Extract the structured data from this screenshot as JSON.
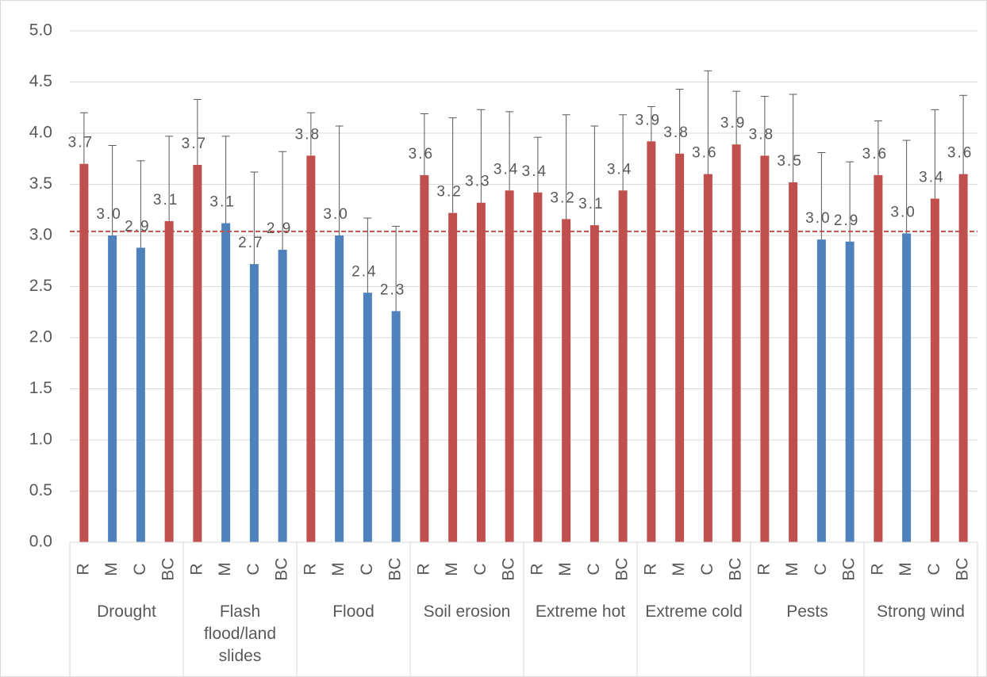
{
  "chart_data": {
    "type": "bar",
    "groups": [
      "Drought",
      "Flash flood/land slides",
      "Flood",
      "Soil erosion",
      "Extreme hot",
      "Extreme cold",
      "Pests",
      "Strong wind"
    ],
    "categories": [
      "R",
      "M",
      "C",
      "BC",
      "R",
      "M",
      "C",
      "BC",
      "R",
      "M",
      "C",
      "BC",
      "R",
      "M",
      "C",
      "BC",
      "R",
      "M",
      "C",
      "BC",
      "R",
      "M",
      "C",
      "BC",
      "R",
      "M",
      "C",
      "BC",
      "R",
      "M",
      "C",
      "BC"
    ],
    "values": [
      3.7,
      3.0,
      2.88,
      3.14,
      3.69,
      3.12,
      2.72,
      2.86,
      3.78,
      3.0,
      2.44,
      2.26,
      3.59,
      3.22,
      3.32,
      3.44,
      3.42,
      3.16,
      3.1,
      3.44,
      3.92,
      3.8,
      3.6,
      3.89,
      3.78,
      3.52,
      2.96,
      2.94,
      3.59,
      3.02,
      3.36,
      3.6
    ],
    "value_labels": [
      "3.7",
      "3.0",
      "2.9",
      "3.1",
      "3.7",
      "3.1",
      "2.7",
      "2.9",
      "3.8",
      "3.0",
      "2.4",
      "2.3",
      "3.6",
      "3.2",
      "3.3",
      "3.4",
      "3.4",
      "3.2",
      "3.1",
      "3.4",
      "3.9",
      "3.8",
      "3.6",
      "3.9",
      "3.8",
      "3.5",
      "3.0",
      "2.9",
      "3.6",
      "3.0",
      "3.4",
      "3.6"
    ],
    "errors": [
      0.5,
      0.88,
      0.85,
      0.83,
      0.64,
      0.85,
      0.9,
      0.96,
      0.42,
      1.07,
      0.73,
      0.83,
      0.6,
      0.93,
      0.91,
      0.77,
      0.54,
      1.02,
      0.97,
      0.74,
      0.34,
      0.63,
      1.01,
      0.52,
      0.58,
      0.86,
      0.85,
      0.78,
      0.53,
      0.91,
      0.87,
      0.77
    ],
    "colors": [
      "#c0504d",
      "#4f81bd",
      "#4f81bd",
      "#c0504d",
      "#c0504d",
      "#4f81bd",
      "#4f81bd",
      "#4f81bd",
      "#c0504d",
      "#4f81bd",
      "#4f81bd",
      "#4f81bd",
      "#c0504d",
      "#c0504d",
      "#c0504d",
      "#c0504d",
      "#c0504d",
      "#c0504d",
      "#c0504d",
      "#c0504d",
      "#c0504d",
      "#c0504d",
      "#c0504d",
      "#c0504d",
      "#c0504d",
      "#c0504d",
      "#4f81bd",
      "#4f81bd",
      "#c0504d",
      "#4f81bd",
      "#c0504d",
      "#c0504d"
    ],
    "reference_line": 3.04,
    "reference_color": "#c0504d",
    "ylim": [
      0,
      5
    ],
    "yticks": [
      {
        "value": 0,
        "label": "0.0"
      },
      {
        "value": 0.5,
        "label": "0.5"
      },
      {
        "value": 1,
        "label": "1.0"
      },
      {
        "value": 1.5,
        "label": "1.5"
      },
      {
        "value": 2,
        "label": "2.0"
      },
      {
        "value": 2.5,
        "label": "2.5"
      },
      {
        "value": 3,
        "label": "3.0"
      },
      {
        "value": 3.5,
        "label": "3.5"
      },
      {
        "value": 4,
        "label": "4.0"
      },
      {
        "value": 4.5,
        "label": "4.5"
      },
      {
        "value": 5,
        "label": "5.0"
      }
    ],
    "grid": true
  }
}
